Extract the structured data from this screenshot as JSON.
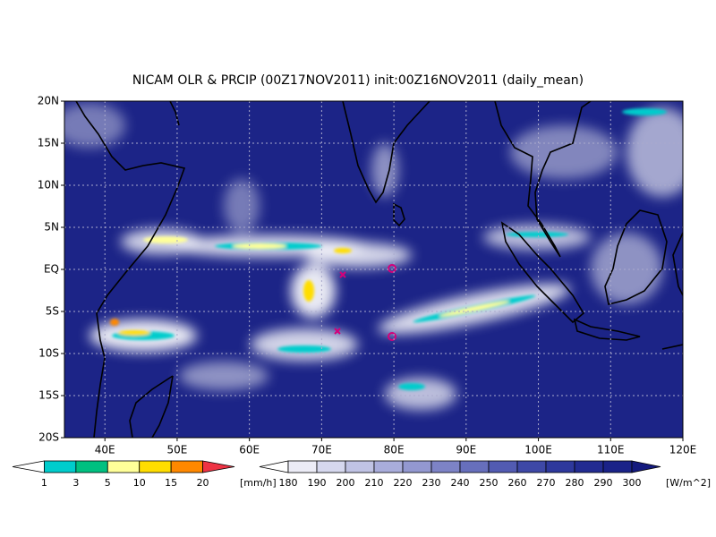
{
  "title": "NICAM OLR & PRCIP (00Z17NOV2011) init:00Z16NOV2011 (daily_mean)",
  "map": {
    "xlim": [
      34.4,
      120
    ],
    "ylim": [
      -20,
      20
    ],
    "xticks": [
      {
        "value": 40,
        "label": "40E"
      },
      {
        "value": 50,
        "label": "50E"
      },
      {
        "value": 60,
        "label": "60E"
      },
      {
        "value": 70,
        "label": "70E"
      },
      {
        "value": 80,
        "label": "80E"
      },
      {
        "value": 90,
        "label": "90E"
      },
      {
        "value": 100,
        "label": "100E"
      },
      {
        "value": 110,
        "label": "110E"
      },
      {
        "value": 120,
        "label": "120E"
      }
    ],
    "yticks": [
      {
        "value": 20,
        "label": "20N"
      },
      {
        "value": 15,
        "label": "15N"
      },
      {
        "value": 10,
        "label": "10N"
      },
      {
        "value": 5,
        "label": "5N"
      },
      {
        "value": 0,
        "label": "EQ"
      },
      {
        "value": -5,
        "label": "5S"
      },
      {
        "value": -10,
        "label": "10S"
      },
      {
        "value": -15,
        "label": "15S"
      },
      {
        "value": -20,
        "label": "20S"
      }
    ]
  },
  "precip_legend": {
    "labels": [
      1,
      3,
      5,
      10,
      15,
      20
    ],
    "unit": "[mm/h]",
    "colors": [
      "#ffffff",
      "#00cccc",
      "#00c080",
      "#ffff99",
      "#ffdd00",
      "#ff8800",
      "#ee3344"
    ]
  },
  "olr_legend": {
    "labels": [
      180,
      190,
      200,
      210,
      220,
      230,
      240,
      250,
      260,
      270,
      280,
      290,
      300
    ],
    "unit": "[W/m^2]",
    "colors": [
      "#ffffff",
      "#ececf6",
      "#d6d8ee",
      "#c0c3e4",
      "#a9addb",
      "#9398d0",
      "#7d83c6",
      "#676fbc",
      "#525bb2",
      "#3e48a6",
      "#2e389c",
      "#222b91",
      "#1a2288",
      "#141a7e"
    ]
  }
}
